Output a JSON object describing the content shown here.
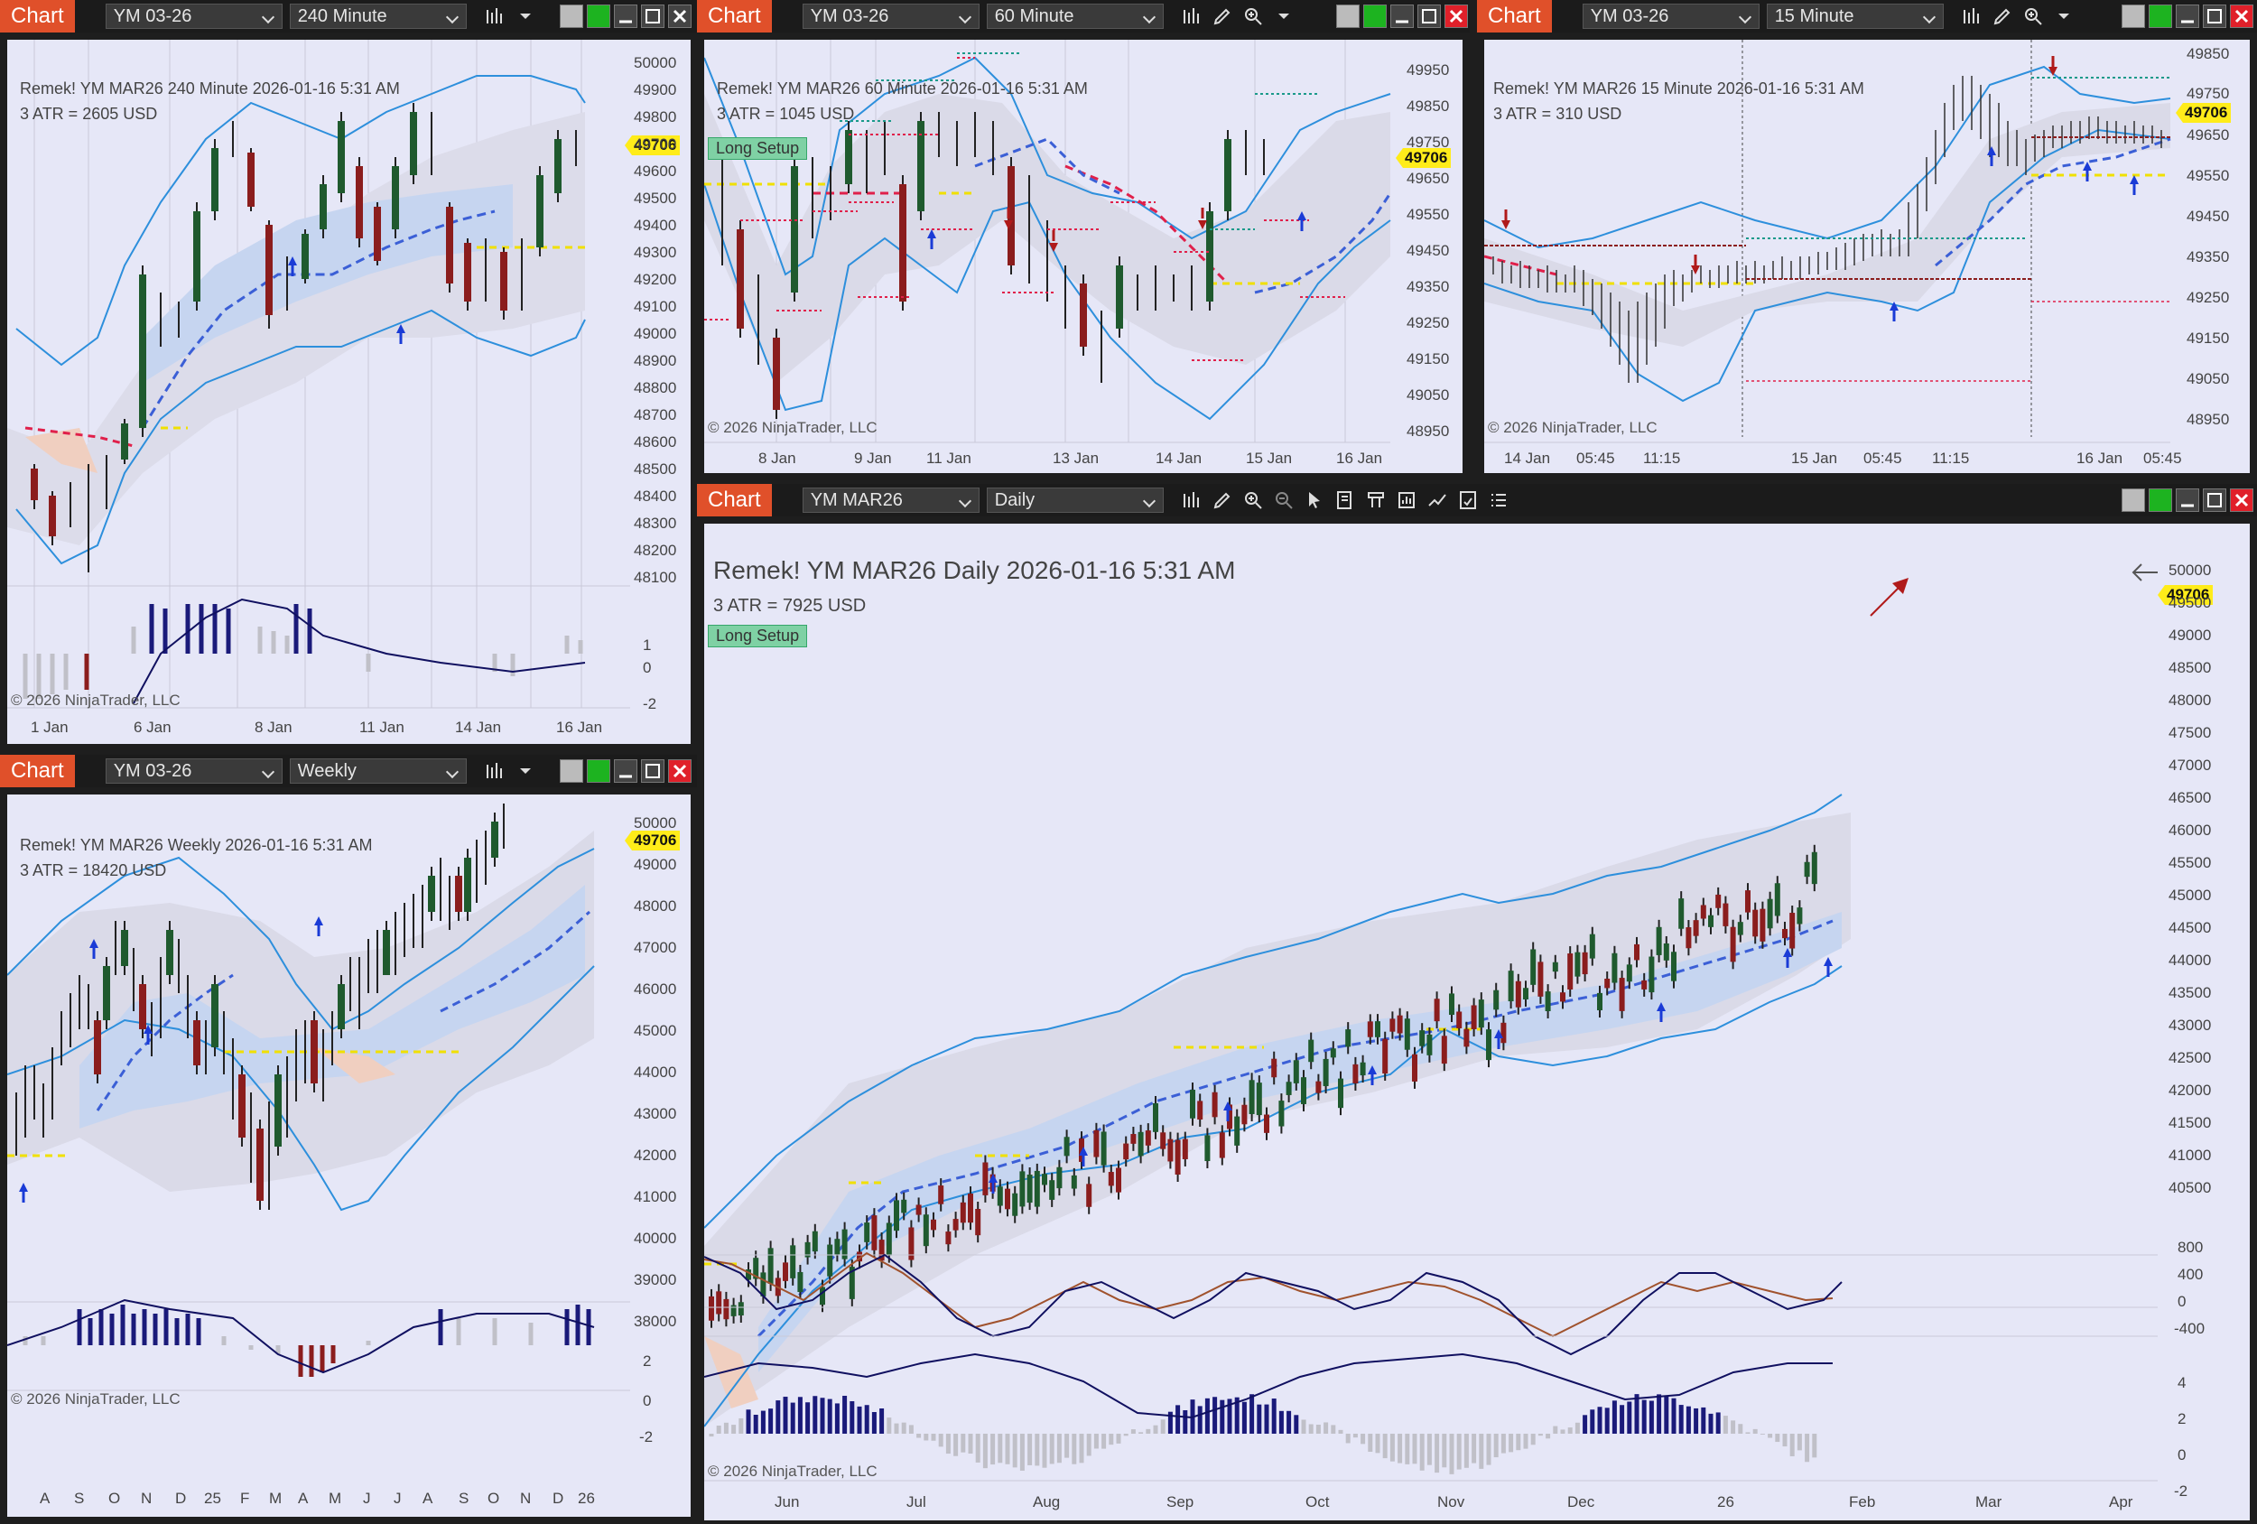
{
  "colors": {
    "chart_tab": "#e0502a",
    "pane_bg": "#e6e7f7",
    "up_candle": "#1a4d2a",
    "down_candle": "#8b1d1d",
    "price_tag": "#ffec1a"
  },
  "icons": [
    "bar-chart-icon",
    "dropdown-icon",
    "pencil-icon",
    "zoom-in-icon",
    "zoom-out-icon",
    "pointer-icon",
    "properties-icon",
    "data-box-icon",
    "strategy-icon",
    "indicator-icon",
    "formula-icon",
    "list-icon",
    "minimize-icon",
    "maximize-icon",
    "close-icon"
  ],
  "windows": [
    {
      "tab": "Chart",
      "instrument": "YM 03-26",
      "period": "240 Minute",
      "header": "Remek!  YM MAR26  240 Minute  2026-01-16 5:31 AM",
      "atr": "3 ATR = 2605 USD",
      "price": "49706",
      "copyright": "© 2026 NinjaTrader, LLC",
      "yticks": [
        "50000",
        "49900",
        "49800",
        "49700",
        "49600",
        "49500",
        "49400",
        "49300",
        "49200",
        "49100",
        "49000",
        "48900",
        "48800",
        "48700",
        "48600",
        "48500",
        "48400",
        "48300",
        "48200",
        "48100"
      ],
      "osc_ticks": [
        "1",
        "0",
        "-2"
      ],
      "xticks": [
        "1 Jan",
        "6 Jan",
        "8 Jan",
        "11 Jan",
        "14 Jan",
        "16 Jan"
      ]
    },
    {
      "tab": "Chart",
      "instrument": "YM 03-26",
      "period": "60 Minute",
      "header": "Remek!  YM MAR26  60 Minute  2026-01-16 5:31 AM",
      "atr": "3 ATR = 1045 USD",
      "setup": "Long Setup",
      "price": "49706",
      "copyright": "© 2026 NinjaTrader, LLC",
      "yticks": [
        "49950",
        "49850",
        "49750",
        "49650",
        "49550",
        "49450",
        "49350",
        "49250",
        "49150",
        "49050",
        "48950"
      ],
      "xticks": [
        "8 Jan",
        "9 Jan",
        "11 Jan",
        "13 Jan",
        "14 Jan",
        "15 Jan",
        "16 Jan"
      ]
    },
    {
      "tab": "Chart",
      "instrument": "YM 03-26",
      "period": "15 Minute",
      "header": "Remek!  YM MAR26  15 Minute  2026-01-16 5:31 AM",
      "atr": "3 ATR = 310 USD",
      "price": "49706",
      "copyright": "© 2026 NinjaTrader, LLC",
      "yticks": [
        "49850",
        "49750",
        "49650",
        "49550",
        "49450",
        "49350",
        "49250",
        "49150",
        "49050",
        "48950"
      ],
      "xticks": [
        "14 Jan",
        "05:45",
        "11:15",
        "15 Jan",
        "05:45",
        "11:15",
        "16 Jan",
        "05:45"
      ]
    },
    {
      "tab": "Chart",
      "instrument": "YM 03-26",
      "period": "Weekly",
      "header": "Remek!  YM MAR26  Weekly  2026-01-16 5:31 AM",
      "atr": "3 ATR = 18420 USD",
      "price": "49706",
      "copyright": "© 2026 NinjaTrader, LLC",
      "yticks": [
        "50000",
        "49000",
        "48000",
        "47000",
        "46000",
        "45000",
        "44000",
        "43000",
        "42000",
        "41000",
        "40000",
        "39000",
        "38000"
      ],
      "osc_ticks": [
        "2",
        "0",
        "-2"
      ],
      "xticks": [
        "A",
        "S",
        "O",
        "N",
        "D",
        "25",
        "F",
        "M",
        "A",
        "M",
        "J",
        "J",
        "A",
        "S",
        "O",
        "N",
        "D",
        "26"
      ]
    },
    {
      "tab": "Chart",
      "instrument": "YM MAR26",
      "period": "Daily",
      "header": "Remek!  YM MAR26  Daily  2026-01-16 5:31 AM",
      "atr": "3 ATR = 7925 USD",
      "setup": "Long Setup",
      "price": "49706",
      "copyright": "© 2026 NinjaTrader, LLC",
      "yticks": [
        "50000",
        "49500",
        "49000",
        "48500",
        "48000",
        "47500",
        "47000",
        "46500",
        "46000",
        "45500",
        "45000",
        "44500",
        "44000",
        "43500",
        "43000",
        "42500",
        "42000",
        "41500",
        "41000",
        "40500"
      ],
      "osc1_ticks": [
        "800",
        "400",
        "0",
        "-400"
      ],
      "osc2_ticks": [
        "4",
        "2",
        "0",
        "-2"
      ],
      "xticks": [
        "Jun",
        "Jul",
        "Aug",
        "Sep",
        "Oct",
        "Nov",
        "Dec",
        "26",
        "Feb",
        "Mar",
        "Apr"
      ]
    }
  ]
}
